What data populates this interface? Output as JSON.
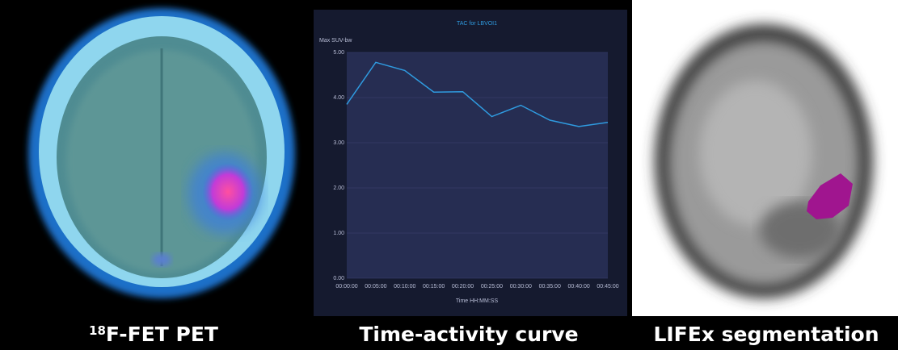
{
  "captions": [
    {
      "sup": "18",
      "text": "F-FET PET"
    },
    {
      "text": "Time-activity curve"
    },
    {
      "text": "LIFEx segmentation"
    }
  ],
  "chart_data": {
    "type": "line",
    "title": "TAC for LBVOI1",
    "y_label": "Max SUV-bw",
    "x_label": "Time HH:MM:SS",
    "categories": [
      "00:00:00",
      "00:05:00",
      "00:10:00",
      "00:15:00",
      "00:20:00",
      "00:25:00",
      "00:30:00",
      "00:35:00",
      "00:40:00",
      "00:45:00"
    ],
    "values": [
      3.85,
      4.78,
      4.6,
      4.12,
      4.13,
      3.58,
      3.83,
      3.5,
      3.36,
      3.45
    ],
    "color": "#2f9be0",
    "ylim": [
      0,
      5
    ],
    "yticks": [
      {
        "value": 0,
        "label": "0.00"
      },
      {
        "value": 1,
        "label": "1.00"
      },
      {
        "value": 2,
        "label": "2.00"
      },
      {
        "value": 3,
        "label": "3.00"
      },
      {
        "value": 4,
        "label": "4.00"
      },
      {
        "value": 5,
        "label": "5.00"
      }
    ],
    "grid": true
  }
}
